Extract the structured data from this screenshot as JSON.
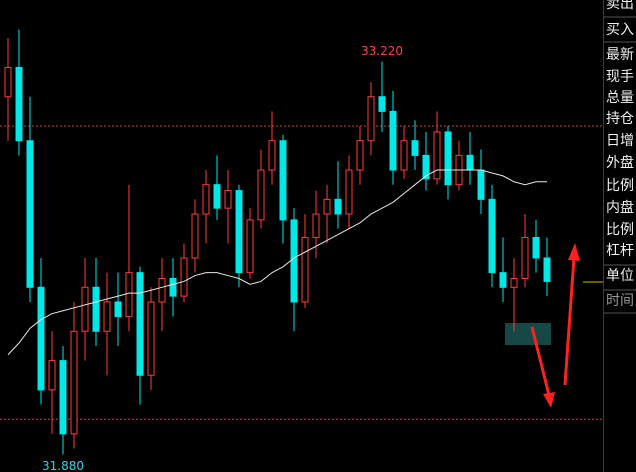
{
  "chart_data": {
    "type": "candlestick",
    "ylim": [
      31.82,
      33.43
    ],
    "up_color": "#ff3c3c",
    "down_color": "#00e8e8",
    "ma_color": "#e8e8e8",
    "ref_color": "#d04040",
    "open": [
      33.1,
      33.2,
      32.95,
      32.45,
      32.1,
      32.2,
      31.95,
      32.3,
      32.45,
      32.3,
      32.4,
      32.35,
      32.5,
      32.15,
      32.4,
      32.48,
      32.42,
      32.55,
      32.7,
      32.8,
      32.72,
      32.78,
      32.5,
      32.68,
      32.85,
      32.95,
      32.68,
      32.4,
      32.62,
      32.7,
      32.75,
      32.7,
      32.85,
      32.95,
      33.1,
      33.05,
      32.85,
      32.95,
      32.9,
      32.82,
      32.98,
      32.8,
      32.9,
      32.85,
      32.75,
      32.5,
      32.45,
      32.48,
      32.62,
      32.55
    ],
    "high": [
      33.3,
      33.33,
      33.1,
      32.55,
      32.3,
      32.25,
      32.4,
      32.55,
      32.55,
      32.5,
      32.5,
      32.8,
      32.52,
      32.45,
      32.55,
      32.55,
      32.6,
      32.75,
      32.85,
      32.9,
      32.85,
      32.8,
      32.72,
      32.92,
      33.05,
      32.97,
      32.72,
      32.7,
      32.78,
      32.8,
      32.88,
      32.9,
      33.0,
      33.15,
      33.22,
      33.12,
      33.0,
      33.02,
      32.98,
      33.05,
      33.0,
      32.95,
      32.98,
      32.92,
      32.8,
      32.62,
      32.55,
      32.7,
      32.68,
      32.62
    ],
    "low": [
      32.95,
      32.9,
      32.4,
      32.05,
      31.95,
      31.88,
      31.9,
      32.2,
      32.25,
      32.15,
      32.25,
      32.3,
      32.05,
      32.1,
      32.3,
      32.35,
      32.4,
      32.5,
      32.6,
      32.68,
      32.6,
      32.45,
      32.48,
      32.65,
      32.8,
      32.6,
      32.3,
      32.38,
      32.55,
      32.6,
      32.65,
      32.65,
      32.8,
      32.9,
      32.98,
      32.8,
      32.82,
      32.85,
      32.78,
      32.8,
      32.75,
      32.78,
      32.8,
      32.7,
      32.45,
      32.4,
      32.3,
      32.45,
      32.5,
      32.42
    ],
    "close": [
      33.2,
      32.95,
      32.45,
      32.1,
      32.2,
      31.95,
      32.3,
      32.45,
      32.3,
      32.4,
      32.35,
      32.5,
      32.15,
      32.4,
      32.48,
      32.42,
      32.55,
      32.7,
      32.8,
      32.72,
      32.78,
      32.5,
      32.68,
      32.85,
      32.95,
      32.68,
      32.4,
      32.62,
      32.7,
      32.75,
      32.7,
      32.85,
      32.95,
      33.1,
      33.05,
      32.85,
      32.95,
      32.9,
      32.82,
      32.98,
      32.8,
      32.9,
      32.85,
      32.75,
      32.5,
      32.45,
      32.48,
      32.62,
      32.55,
      32.47
    ],
    "ma": [
      32.22,
      32.26,
      32.31,
      32.34,
      32.36,
      32.37,
      32.38,
      32.39,
      32.4,
      32.41,
      32.42,
      32.43,
      32.43,
      32.44,
      32.45,
      32.46,
      32.47,
      32.49,
      32.5,
      32.5,
      32.49,
      32.48,
      32.46,
      32.47,
      32.5,
      32.52,
      32.55,
      32.57,
      32.59,
      32.61,
      32.63,
      32.65,
      32.67,
      32.7,
      32.72,
      32.74,
      32.77,
      32.8,
      32.83,
      32.85,
      32.85,
      32.85,
      32.85,
      32.85,
      32.84,
      32.83,
      32.81,
      32.8,
      32.81,
      32.81
    ],
    "ref_lines": [
      33.0,
      32.0
    ],
    "annotations": [
      {
        "value": 33.22,
        "label": "33.220",
        "color": "#ff4040"
      },
      {
        "value": 31.88,
        "label": "31.880",
        "color": "#40d0e0"
      }
    ]
  },
  "side_panel": {
    "labels": [
      "卖出",
      "买入",
      "最新",
      "现手",
      "总量",
      "持仓",
      "日增",
      "外盘",
      "比例",
      "内盘",
      "比例",
      "杠杆",
      "单位",
      "时间"
    ]
  }
}
